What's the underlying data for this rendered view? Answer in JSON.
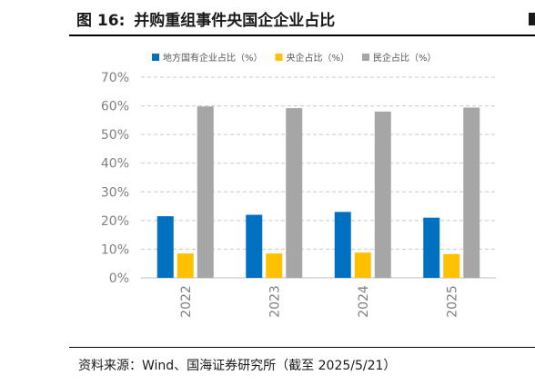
{
  "figure": {
    "label": "图 16:",
    "title": "并购重组事件央国企企业占比"
  },
  "source": "资料来源：Wind、国海证券研究所（截至 2025/5/21）",
  "chart_data": {
    "type": "bar",
    "categories": [
      "2022",
      "2023",
      "2024",
      "2025"
    ],
    "series": [
      {
        "name": "地方国有企业占比（%）",
        "color": "#0070C0",
        "values": [
          21.5,
          22.0,
          23.0,
          21.0
        ]
      },
      {
        "name": "央企占比（%）",
        "color": "#FFC000",
        "values": [
          8.5,
          8.5,
          8.8,
          8.3
        ]
      },
      {
        "name": "民企占比（%）",
        "color": "#A6A6A6",
        "values": [
          59.8,
          59.2,
          58.0,
          59.4
        ]
      }
    ],
    "ylim": [
      0,
      70
    ],
    "yticks": [
      "0%",
      "10%",
      "20%",
      "30%",
      "40%",
      "50%",
      "60%",
      "70%"
    ],
    "grid": true,
    "legend_position": "top"
  }
}
